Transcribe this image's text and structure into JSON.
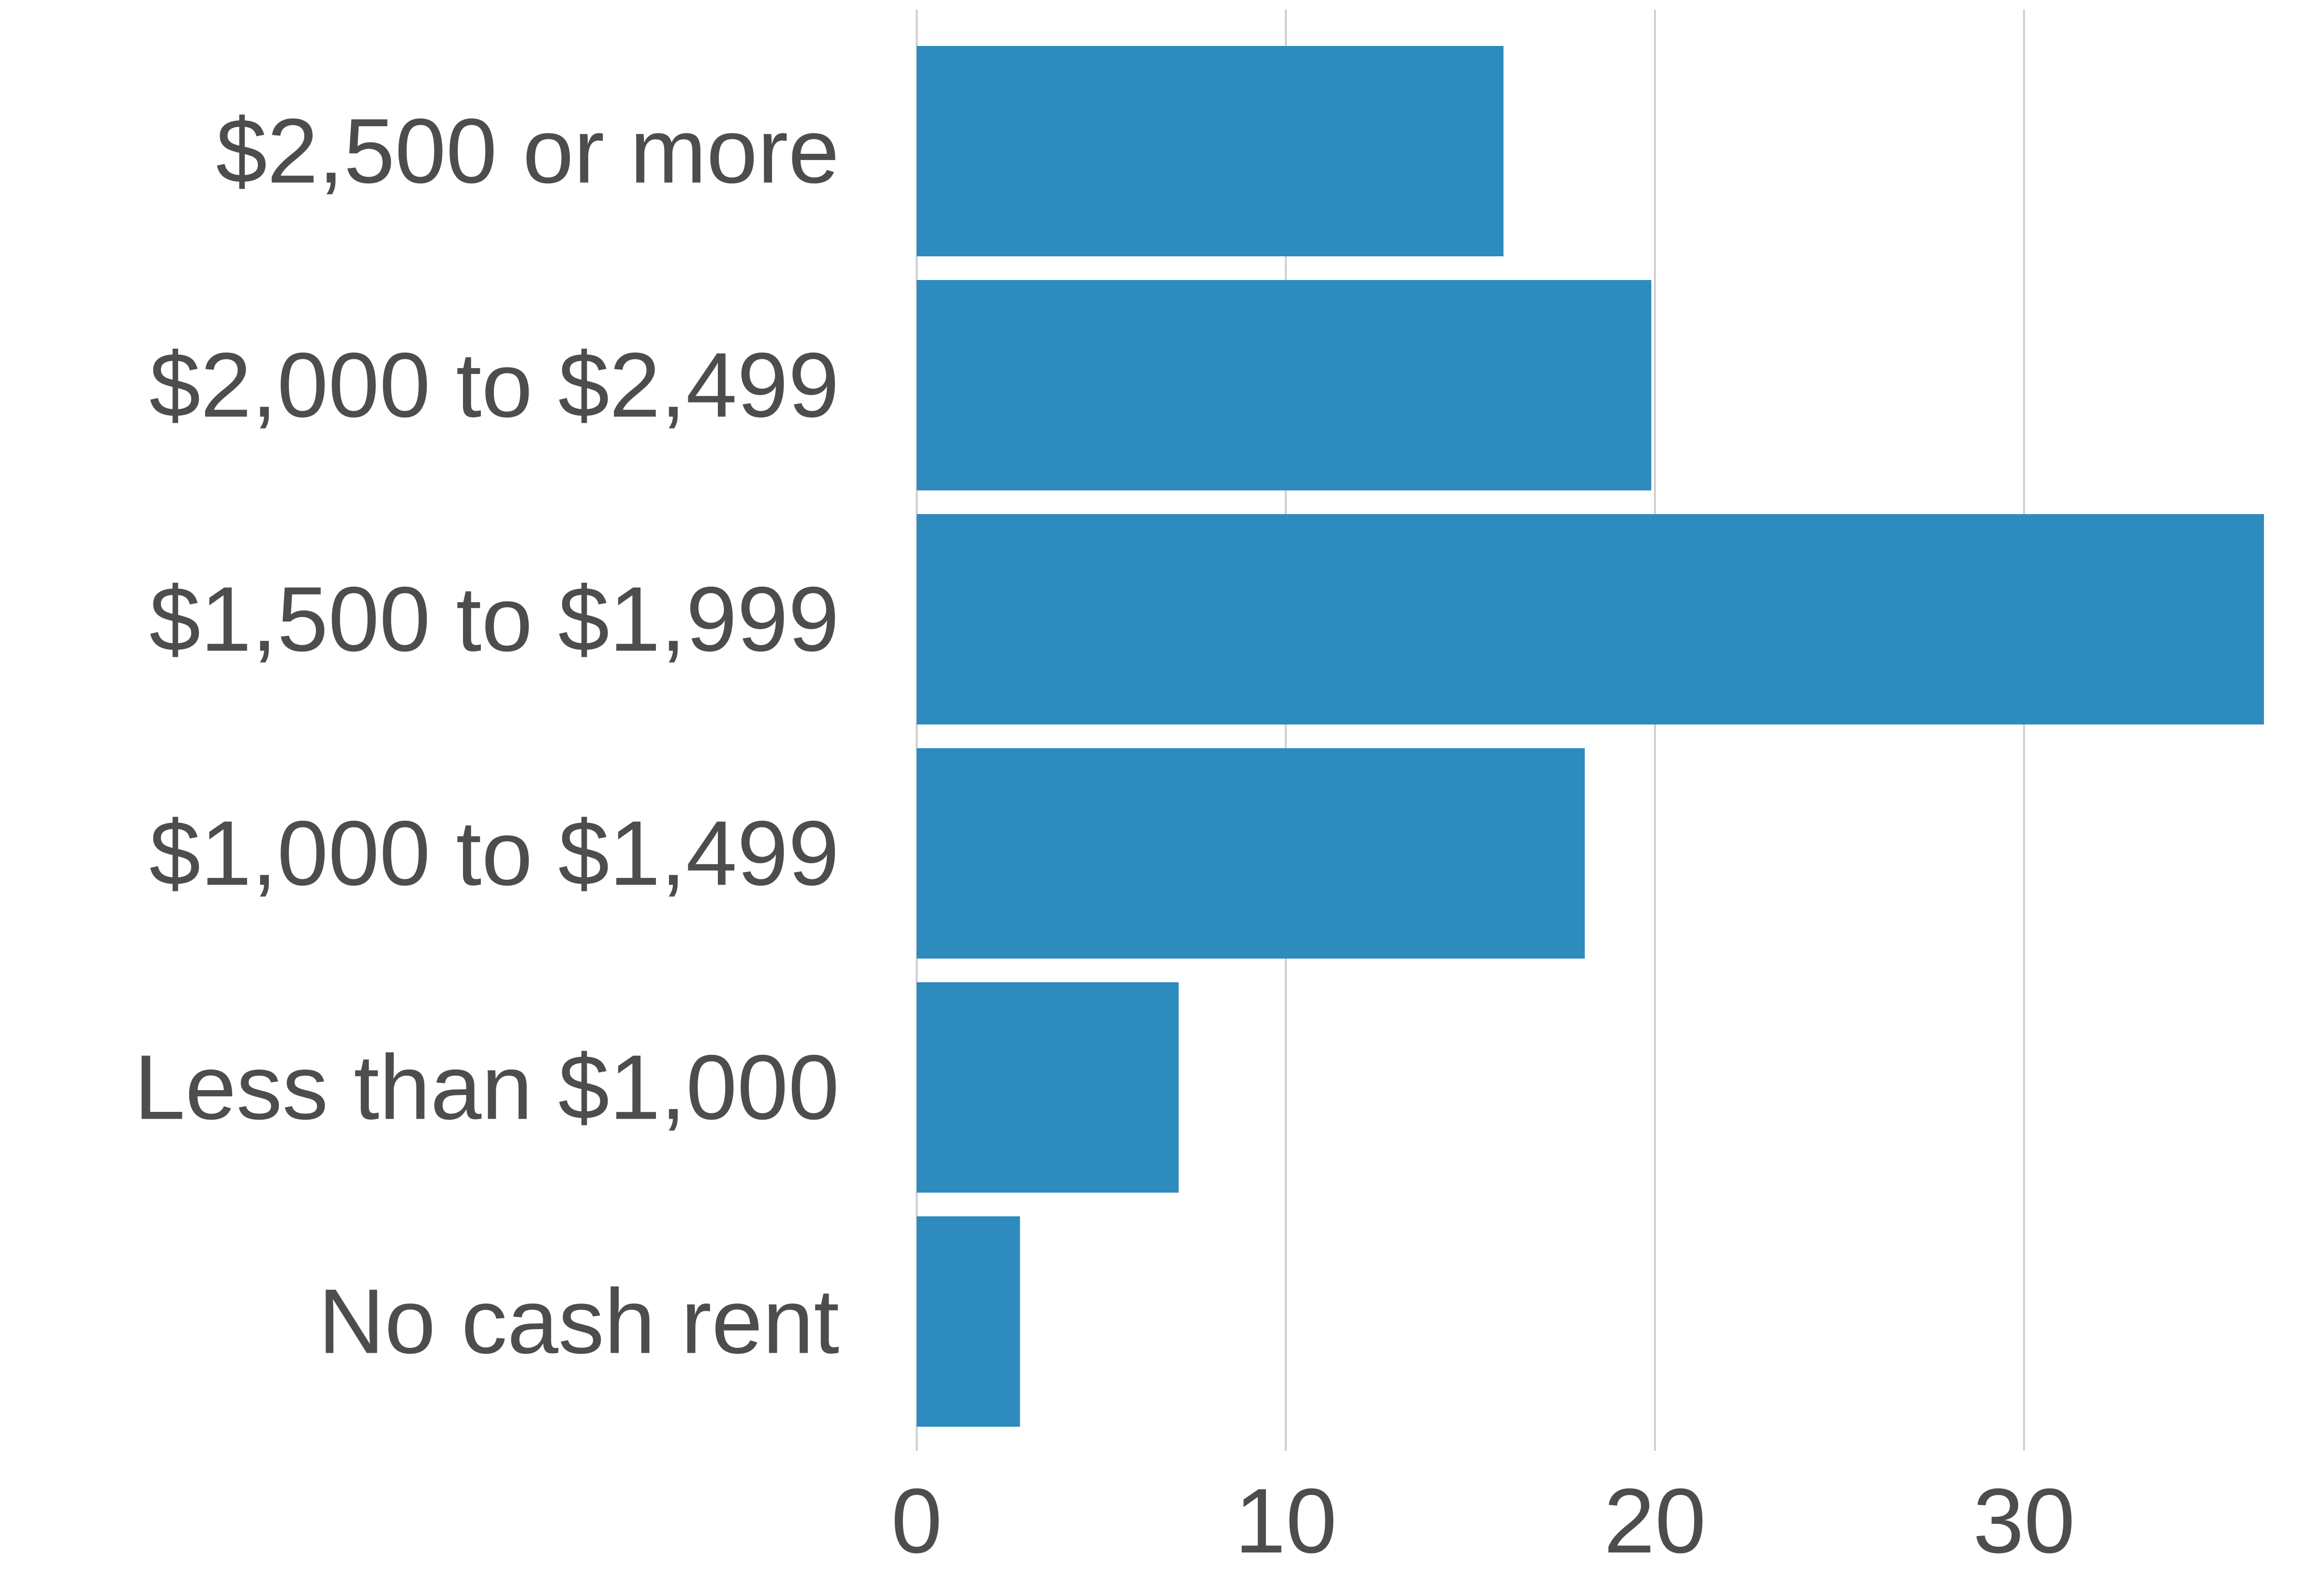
{
  "chart_data": {
    "type": "bar",
    "orientation": "horizontal",
    "title": "",
    "xlabel": "",
    "ylabel": "",
    "categories": [
      "$2,500 or more",
      "$2,000 to $2,499",
      "$1,500 to $1,999",
      "$1,000 to $1,499",
      "Less than $1,000",
      "No cash rent"
    ],
    "values": [
      15.9,
      19.9,
      36.5,
      18.1,
      7.1,
      2.8
    ],
    "xlim": [
      0,
      37.2
    ],
    "xticks": [
      0,
      10,
      20,
      30
    ],
    "xtick_labels": [
      "0",
      "10",
      "20",
      "30"
    ],
    "grid": "vertical",
    "legend": "none",
    "bar_color": "#2e8bbd"
  }
}
